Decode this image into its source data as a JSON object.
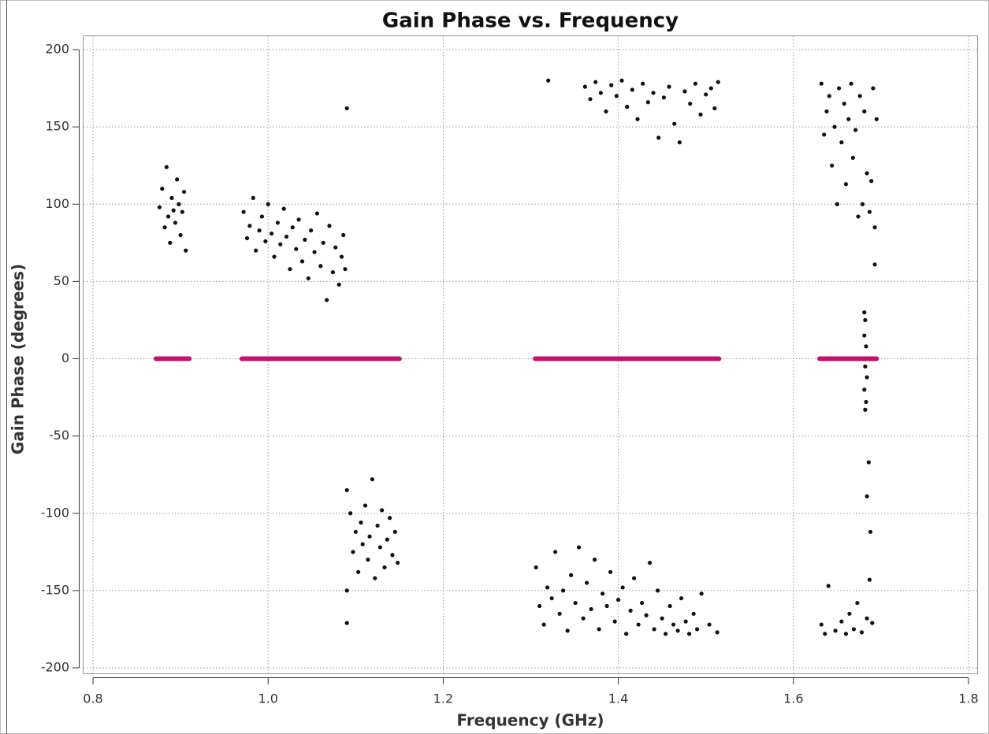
{
  "chart_data": {
    "type": "scatter",
    "title": "Gain Phase vs. Frequency",
    "x_label": "Frequency (GHz)",
    "y_label": "Gain Phase (degrees)",
    "xlim": [
      0.8,
      1.8
    ],
    "ylim": [
      -200,
      200
    ],
    "xticks": [
      0.8,
      {
        "value": 1,
        "label": "1.0"
      },
      1.2,
      1.4,
      1.6,
      1.8
    ],
    "yticks": [
      200,
      150,
      100,
      50,
      0,
      -50,
      -100,
      -150,
      -200
    ],
    "grid": true,
    "series": [
      {
        "color": "#111111",
        "marker": "dot",
        "x": [
          0.876,
          0.879,
          0.882,
          0.884,
          0.886,
          0.888,
          0.89,
          0.892,
          0.894,
          0.896,
          0.898,
          0.9,
          0.902,
          0.904,
          0.906,
          0.972,
          0.976,
          0.979,
          0.983,
          0.986,
          0.99,
          0.993,
          0.997,
          1.0,
          1.004,
          1.007,
          1.011,
          1.014,
          1.018,
          1.021,
          1.025,
          1.028,
          1.032,
          1.035,
          1.039,
          1.042,
          1.046,
          1.049,
          1.053,
          1.056,
          1.06,
          1.063,
          1.067,
          1.07,
          1.074,
          1.077,
          1.081,
          1.084,
          1.086,
          1.088,
          1.09,
          1.09,
          1.09,
          1.09,
          1.094,
          1.097,
          1.1,
          1.103,
          1.106,
          1.108,
          1.111,
          1.114,
          1.116,
          1.119,
          1.122,
          1.125,
          1.128,
          1.13,
          1.133,
          1.136,
          1.139,
          1.142,
          1.145,
          1.148,
          1.32,
          1.362,
          1.368,
          1.374,
          1.38,
          1.386,
          1.392,
          1.398,
          1.404,
          1.41,
          1.416,
          1.422,
          1.428,
          1.434,
          1.44,
          1.446,
          1.452,
          1.458,
          1.464,
          1.47,
          1.476,
          1.482,
          1.488,
          1.494,
          1.5,
          1.506,
          1.51,
          1.514,
          1.306,
          1.31,
          1.315,
          1.319,
          1.324,
          1.328,
          1.333,
          1.337,
          1.342,
          1.346,
          1.351,
          1.355,
          1.36,
          1.364,
          1.369,
          1.373,
          1.378,
          1.382,
          1.387,
          1.391,
          1.396,
          1.4,
          1.405,
          1.409,
          1.414,
          1.418,
          1.423,
          1.427,
          1.432,
          1.436,
          1.441,
          1.445,
          1.45,
          1.454,
          1.459,
          1.463,
          1.468,
          1.472,
          1.477,
          1.481,
          1.486,
          1.49,
          1.495,
          1.504,
          1.513,
          1.632,
          1.635,
          1.638,
          1.641,
          1.644,
          1.647,
          1.65,
          1.652,
          1.655,
          1.658,
          1.66,
          1.663,
          1.666,
          1.668,
          1.671,
          1.674,
          1.676,
          1.679,
          1.681,
          1.684,
          1.687,
          1.689,
          1.691,
          1.693,
          1.695,
          1.681,
          1.682,
          1.681,
          1.683,
          1.682,
          1.684,
          1.681,
          1.683,
          1.682,
          1.686,
          1.684,
          1.693,
          1.688,
          1.687,
          1.632,
          1.636,
          1.64,
          1.648,
          1.655,
          1.66,
          1.664,
          1.669,
          1.673,
          1.678,
          1.684,
          1.69
        ],
        "values": [
          98,
          110,
          85,
          124,
          92,
          75,
          104,
          96,
          88,
          116,
          100,
          80,
          95,
          108,
          70,
          95,
          78,
          86,
          104,
          70,
          83,
          92,
          76,
          100,
          81,
          66,
          88,
          74,
          97,
          79,
          58,
          85,
          71,
          90,
          63,
          77,
          52,
          83,
          69,
          94,
          60,
          75,
          38,
          86,
          56,
          72,
          48,
          66,
          80,
          58,
          162,
          -171,
          -150,
          -85,
          -100,
          -125,
          -112,
          -138,
          -106,
          -120,
          -95,
          -130,
          -115,
          -78,
          -142,
          -108,
          -122,
          -98,
          -135,
          -117,
          -103,
          -127,
          -112,
          -132,
          180,
          176,
          168,
          179,
          172,
          160,
          177,
          170,
          180,
          163,
          174,
          155,
          178,
          166,
          172,
          143,
          169,
          176,
          152,
          140,
          173,
          165,
          178,
          158,
          171,
          175,
          162,
          179,
          -135,
          -160,
          -172,
          -148,
          -155,
          -125,
          -165,
          -150,
          -176,
          -140,
          -158,
          -122,
          -168,
          -145,
          -162,
          -130,
          -175,
          -152,
          -160,
          -138,
          -170,
          -156,
          -148,
          -178,
          -163,
          -142,
          -172,
          -158,
          -166,
          -132,
          -175,
          -150,
          -168,
          -178,
          -160,
          -172,
          -176,
          -155,
          -170,
          -178,
          -165,
          -175,
          -152,
          -172,
          -177,
          178,
          145,
          160,
          170,
          125,
          150,
          100,
          175,
          140,
          165,
          113,
          155,
          178,
          130,
          148,
          92,
          170,
          100,
          160,
          120,
          95,
          115,
          175,
          85,
          155,
          30,
          25,
          15,
          8,
          -5,
          -12,
          -20,
          -28,
          -33,
          -67,
          -89,
          61,
          -112,
          -143,
          -172,
          -178,
          -147,
          -176,
          -170,
          -178,
          -165,
          -175,
          -158,
          -177,
          -168,
          -171
        ]
      },
      {
        "color": "#c8106e",
        "marker": "line",
        "x": [
          0.872,
          0.91,
          0.94,
          0.97,
          1.15,
          1.2,
          1.305,
          1.515,
          1.57,
          1.63,
          1.695
        ],
        "values": [
          0,
          0,
          null,
          0,
          0,
          null,
          0,
          0,
          null,
          0,
          0
        ]
      }
    ]
  }
}
